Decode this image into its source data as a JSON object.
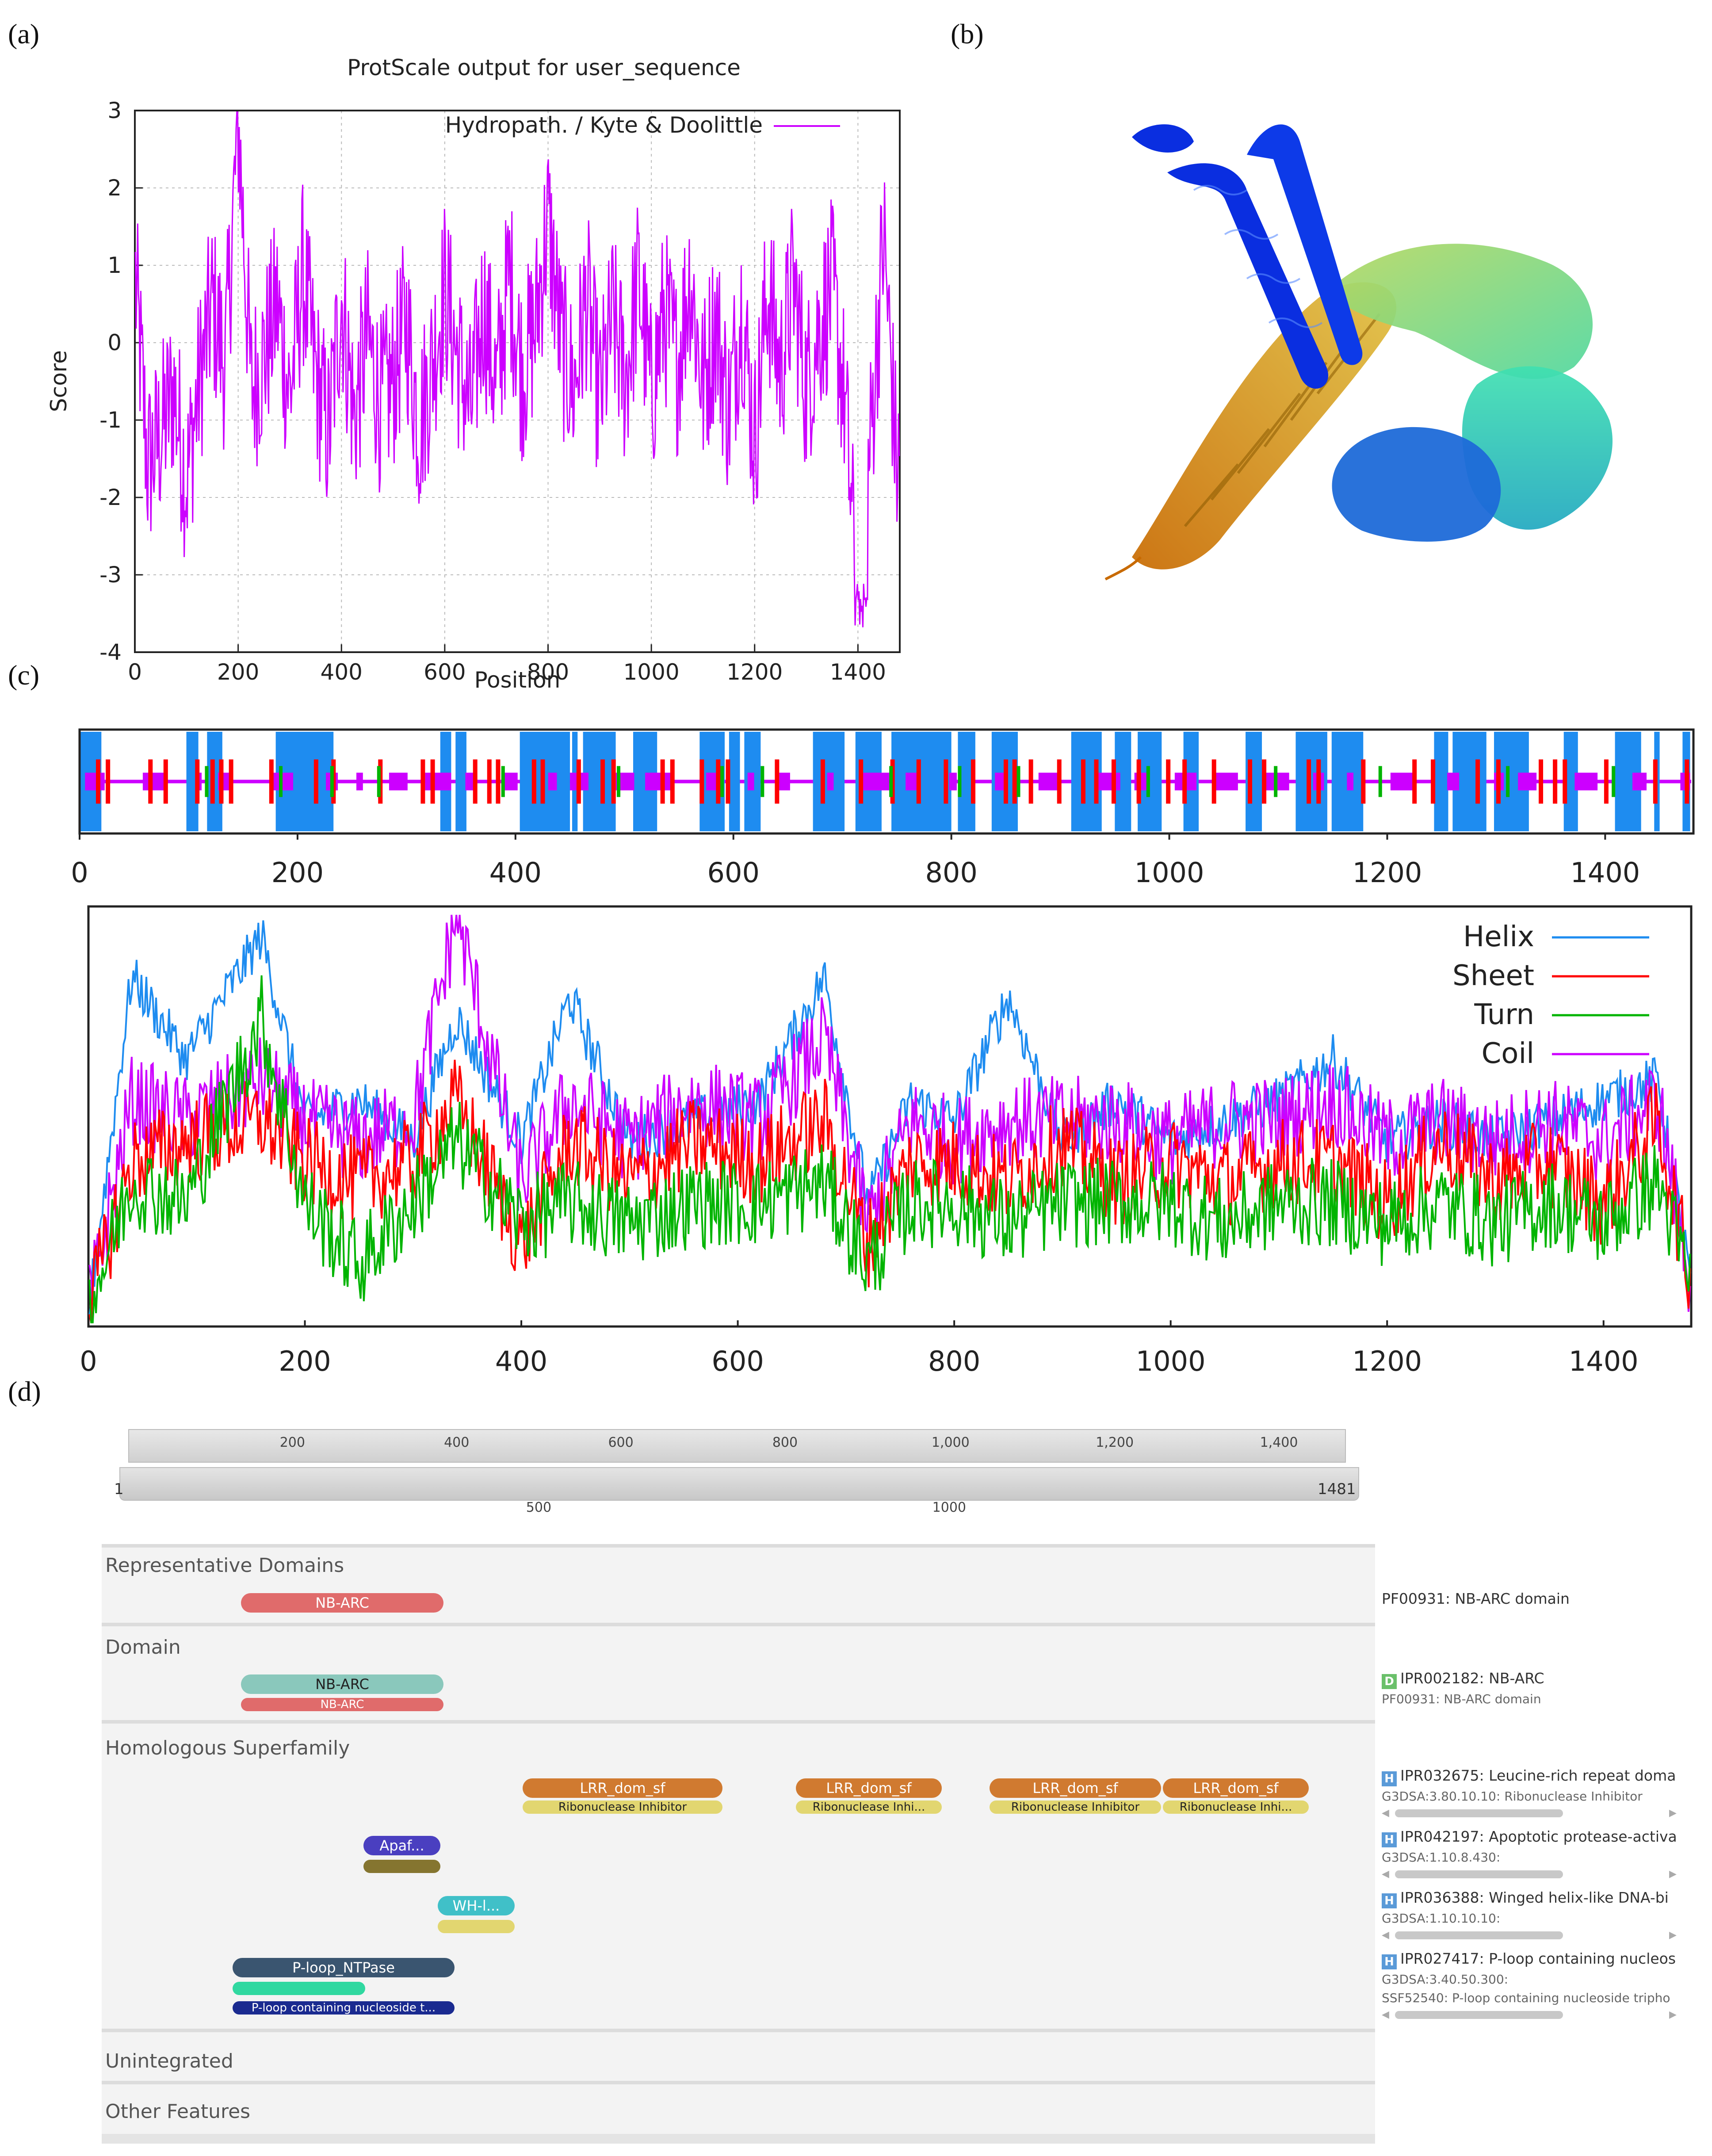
{
  "panels": {
    "a": "(a)",
    "b": "(b)",
    "c": "(c)",
    "d": "(d)"
  },
  "panel_a": {
    "title": "ProtScale output for user_sequence",
    "xlabel": "Position",
    "ylabel": "Score",
    "legend": "Hydropath. / Kyte & Doolittle",
    "line_color": "#cc00ff"
  },
  "panel_c": {
    "legend": [
      "Helix",
      "Sheet",
      "Turn",
      "Coil"
    ],
    "colors": {
      "Helix": "#1e8cf0",
      "Sheet": "#ff0000",
      "Turn": "#00b400",
      "Coil": "#cc00ff"
    }
  },
  "panel_d": {
    "ruler_top_ticks": [
      "200",
      "400",
      "600",
      "800",
      "1,000",
      "1,200",
      "1,400"
    ],
    "ruler_start": "1",
    "ruler_end": "1481",
    "ruler_bottom_ticks": [
      "500",
      "1000"
    ],
    "sections": [
      "Representative Domains",
      "Domain",
      "Homologous Superfamily",
      "Unintegrated",
      "Other Features"
    ],
    "pills": {
      "nbarc_rep": "NB-ARC",
      "nbarc_ipr": "NB-ARC",
      "nbarc_pf": "NB-ARC",
      "lrr1": "LRR_dom_sf",
      "lrr2": "LRR_dom_sf",
      "lrr3": "LRR_dom_sf",
      "lrr4": "LRR_dom_sf",
      "ri1": "Ribonuclease Inhibitor",
      "ri2": "Ribonuclease Inhi...",
      "ri3": "Ribonuclease Inhibitor",
      "ri4": "Ribonuclease Inhi...",
      "apaf": "Apaf...",
      "whl": "WH-l...",
      "ploop": "P-loop_NTPase",
      "ploop_ssf": "P-loop containing nucleoside t..."
    },
    "side": {
      "rep": "PF00931: NB-ARC domain",
      "dom_badge": "D",
      "dom_title": "IPR002182: NB-ARC",
      "dom_sub": "PF00931: NB-ARC domain",
      "h_badge": "H",
      "h1_title": "IPR032675: Leucine-rich repeat doma",
      "h1_sub": "G3DSA:3.80.10.10: Ribonuclease Inhibitor",
      "h2_title": "IPR042197: Apoptotic protease-activa",
      "h2_sub": "G3DSA:1.10.8.430:",
      "h3_title": "IPR036388: Winged helix-like DNA-bi",
      "h3_sub": "G3DSA:1.10.10.10:",
      "h4_title": "IPR027417: P-loop containing nucleos",
      "h4_sub1": "G3DSA:3.40.50.300:",
      "h4_sub2": "SSF52540: P-loop containing nucleoside tripho"
    }
  },
  "chart_data": [
    {
      "type": "line",
      "title": "ProtScale output for user_sequence",
      "xlabel": "Position",
      "ylabel": "Score",
      "xlim": [
        0,
        1481
      ],
      "ylim": [
        -4,
        3
      ],
      "x_ticks": [
        0,
        200,
        400,
        600,
        800,
        1000,
        1200,
        1400
      ],
      "y_ticks": [
        -4,
        -3,
        -2,
        -1,
        0,
        1,
        2,
        3
      ],
      "grid": true,
      "legend_position": "top-right",
      "series": [
        {
          "name": "Hydropath. / Kyte & Doolittle",
          "x": [
            1,
            25,
            50,
            75,
            100,
            125,
            150,
            175,
            200,
            225,
            250,
            275,
            300,
            325,
            350,
            375,
            400,
            425,
            450,
            475,
            500,
            525,
            550,
            575,
            600,
            625,
            650,
            675,
            700,
            725,
            750,
            775,
            800,
            825,
            850,
            875,
            900,
            925,
            950,
            975,
            1000,
            1025,
            1050,
            1075,
            1100,
            1125,
            1150,
            1175,
            1200,
            1225,
            1250,
            1275,
            1300,
            1325,
            1350,
            1375,
            1400,
            1425,
            1450,
            1475
          ],
          "y": [
            0.8,
            -1.6,
            -1.2,
            -0.6,
            -1.8,
            -0.5,
            0.5,
            -0.3,
            2.9,
            -0.6,
            -0.2,
            0.5,
            -0.7,
            0.9,
            -0.4,
            -1.2,
            0.6,
            -1.0,
            0.1,
            -0.8,
            -0.5,
            0.3,
            -1.1,
            -0.3,
            0.7,
            -0.2,
            -0.9,
            0.5,
            -0.6,
            0.9,
            -0.4,
            0.2,
            1.6,
            0.0,
            -0.6,
            0.6,
            -0.8,
            0.3,
            -0.5,
            0.8,
            -0.7,
            0.4,
            -0.3,
            0.9,
            -0.6,
            0.3,
            -0.9,
            0.5,
            -1.3,
            0.7,
            -0.4,
            0.8,
            -0.6,
            0.2,
            0.7,
            -0.8,
            -3.5,
            -1.2,
            1.4,
            -1.6
          ]
        }
      ]
    },
    {
      "type": "line",
      "xlim": [
        0,
        1481
      ],
      "x_ticks": [
        200,
        400,
        600,
        800,
        1000,
        1200,
        1400
      ],
      "legend_position": "top-right",
      "series": [
        {
          "name": "Helix",
          "x": [
            1,
            40,
            90,
            160,
            200,
            250,
            300,
            340,
            400,
            445,
            500,
            560,
            620,
            680,
            720,
            760,
            800,
            850,
            900,
            950,
            1000,
            1050,
            1100,
            1150,
            1200,
            1250,
            1300,
            1350,
            1400,
            1450,
            1481
          ],
          "y": [
            0.05,
            0.85,
            0.65,
            0.95,
            0.5,
            0.55,
            0.45,
            0.75,
            0.45,
            0.8,
            0.45,
            0.5,
            0.55,
            0.85,
            0.3,
            0.55,
            0.5,
            0.8,
            0.45,
            0.55,
            0.45,
            0.5,
            0.55,
            0.65,
            0.45,
            0.5,
            0.45,
            0.5,
            0.55,
            0.6,
            0.1
          ]
        },
        {
          "name": "Sheet",
          "x": [
            1,
            40,
            90,
            160,
            200,
            250,
            300,
            340,
            400,
            445,
            500,
            560,
            620,
            680,
            720,
            760,
            800,
            850,
            900,
            950,
            1000,
            1050,
            1100,
            1150,
            1200,
            1250,
            1300,
            1350,
            1400,
            1450,
            1481
          ],
          "y": [
            0.05,
            0.4,
            0.45,
            0.5,
            0.4,
            0.35,
            0.4,
            0.55,
            0.2,
            0.45,
            0.35,
            0.45,
            0.4,
            0.5,
            0.2,
            0.4,
            0.4,
            0.35,
            0.45,
            0.35,
            0.4,
            0.35,
            0.4,
            0.4,
            0.3,
            0.45,
            0.35,
            0.4,
            0.3,
            0.5,
            0.1
          ]
        },
        {
          "name": "Turn",
          "x": [
            1,
            40,
            90,
            160,
            200,
            250,
            300,
            340,
            400,
            445,
            500,
            560,
            620,
            680,
            720,
            760,
            800,
            850,
            900,
            950,
            1000,
            1050,
            1100,
            1150,
            1200,
            1250,
            1300,
            1350,
            1400,
            1450,
            1481
          ],
          "y": [
            0.05,
            0.35,
            0.3,
            0.75,
            0.3,
            0.15,
            0.3,
            0.45,
            0.25,
            0.3,
            0.25,
            0.3,
            0.3,
            0.35,
            0.15,
            0.3,
            0.3,
            0.25,
            0.3,
            0.3,
            0.3,
            0.25,
            0.3,
            0.3,
            0.25,
            0.3,
            0.25,
            0.3,
            0.25,
            0.35,
            0.1
          ]
        },
        {
          "name": "Coil",
          "x": [
            1,
            40,
            90,
            160,
            200,
            250,
            300,
            340,
            400,
            445,
            500,
            560,
            620,
            680,
            720,
            760,
            800,
            850,
            900,
            950,
            1000,
            1050,
            1100,
            1150,
            1200,
            1250,
            1300,
            1350,
            1400,
            1450,
            1481
          ],
          "y": [
            0.05,
            0.55,
            0.5,
            0.6,
            0.5,
            0.45,
            0.5,
            1.0,
            0.35,
            0.55,
            0.45,
            0.55,
            0.5,
            0.7,
            0.25,
            0.5,
            0.45,
            0.5,
            0.5,
            0.5,
            0.45,
            0.5,
            0.5,
            0.55,
            0.45,
            0.5,
            0.45,
            0.5,
            0.45,
            0.55,
            0.1
          ]
        }
      ]
    }
  ]
}
